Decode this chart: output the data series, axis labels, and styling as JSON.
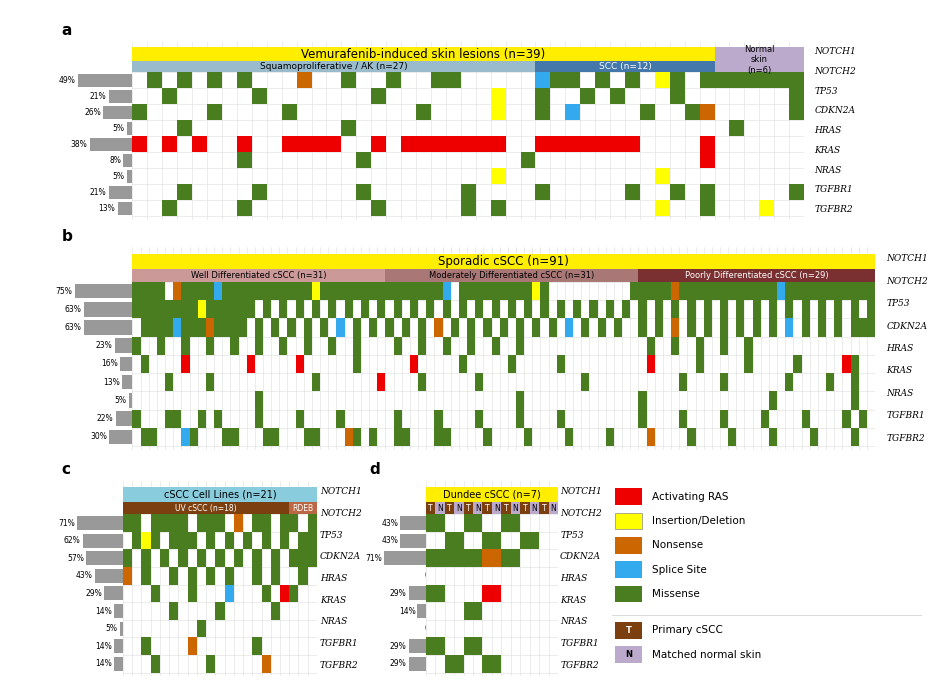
{
  "genes": [
    "NOTCH1",
    "NOTCH2",
    "TP53",
    "CDKN2A",
    "HRAS",
    "KRAS",
    "NRAS",
    "TGFBR1",
    "TGFBR2"
  ],
  "colors": {
    "red": "#EE0000",
    "yellow": "#FFFF00",
    "orange": "#CC6600",
    "blue": "#33AAEE",
    "green": "#4A7C20",
    "gray": "#999999",
    "grid": "#DDDDDD",
    "white": "#FFFFFF",
    "yellow_hdr": "#FFEE00",
    "blue_hdr_light": "#99BBCC",
    "blue_hdr_dark": "#4477AA",
    "purple_hdr": "#BBAACC",
    "pink_hdr": "#CC9999",
    "mauve_hdr": "#AA7777",
    "brown_hdr": "#7A3030",
    "teal_hdr": "#88CCDD",
    "sienna_hdr": "#7B3F10",
    "rdeb_hdr": "#BB6644",
    "t_color": "#7B3F10",
    "n_color": "#BBAACC"
  },
  "panel_a": {
    "title": "Vemurafenib-induced skin lesions (n=39)",
    "sub1_label": "Squamoproliferative / AK (n=27)",
    "sub1_n": 27,
    "sub2_label": "SCC (n=12)",
    "sub2_n": 12,
    "sub3_label": "Normal\nskin\n(n=6)",
    "sub3_n": 6,
    "percentages": [
      49,
      21,
      26,
      5,
      38,
      8,
      5,
      21,
      13
    ]
  },
  "panel_b": {
    "title": "Sporadic cSCC (n=91)",
    "sub1_label": "Well Differentiated cSCC (n=31)",
    "sub1_n": 31,
    "sub2_label": "Moderately Differentiated cSCC (n=31)",
    "sub2_n": 31,
    "sub3_label": "Poorly Differentiated cSCC (n=29)",
    "sub3_n": 29,
    "percentages": [
      75,
      63,
      63,
      23,
      16,
      13,
      5,
      22,
      30
    ]
  },
  "panel_c": {
    "title": "cSCC Cell Lines (n=21)",
    "sub1_label": "UV cSCC (n=18)",
    "sub1_n": 18,
    "sub2_label": "RDEB",
    "sub2_n": 3,
    "percentages": [
      71,
      62,
      57,
      43,
      29,
      14,
      5,
      14,
      14
    ]
  },
  "panel_d": {
    "title": "Dundee cSCC (n=7)",
    "n_pairs": 7,
    "percentages": [
      43,
      43,
      71,
      0,
      29,
      14,
      0,
      29,
      29
    ]
  }
}
